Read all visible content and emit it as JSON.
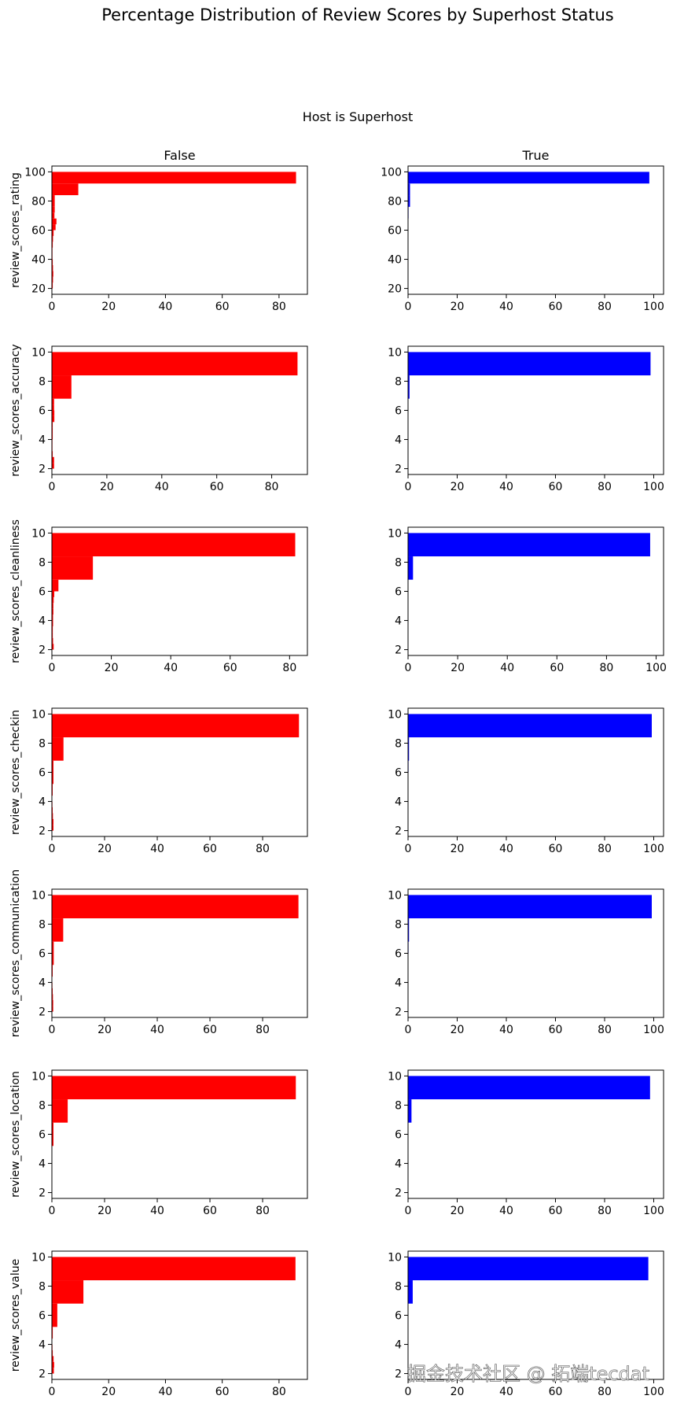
{
  "title": "Percentage Distribution of Review Scores by Superhost Status",
  "group_label": "Host is Superhost",
  "columns": [
    "False",
    "True"
  ],
  "colors": {
    "False": "#ff0000",
    "True": "#0000ff"
  },
  "watermark": "掘金技术社区 @ 拓端tecdat",
  "chart_data": [
    {
      "type": "bar",
      "orientation": "horizontal",
      "row": 0,
      "col": 0,
      "title": "False",
      "ylabel": "review_scores_rating",
      "color": "#ff0000",
      "ylim": [
        16,
        104
      ],
      "xlim": [
        0,
        90
      ],
      "yticks": [
        20,
        40,
        60,
        80,
        100
      ],
      "xticks": [
        0,
        20,
        40,
        60,
        80
      ],
      "bins": [
        [
          20,
          24,
          0.3
        ],
        [
          24,
          28,
          0.4
        ],
        [
          28,
          32,
          0.5
        ],
        [
          32,
          36,
          0.4
        ],
        [
          36,
          40,
          0.3
        ],
        [
          40,
          44,
          0.2
        ],
        [
          44,
          48,
          0.2
        ],
        [
          48,
          52,
          0.3
        ],
        [
          52,
          56,
          0.4
        ],
        [
          56,
          60,
          0.6
        ],
        [
          60,
          64,
          1.3
        ],
        [
          64,
          68,
          1.6
        ],
        [
          68,
          72,
          0.9
        ],
        [
          72,
          76,
          1.0
        ],
        [
          76,
          84,
          1.0
        ],
        [
          84,
          92,
          9.3
        ],
        [
          92,
          100,
          86.0
        ]
      ]
    },
    {
      "type": "bar",
      "orientation": "horizontal",
      "row": 0,
      "col": 1,
      "title": "True",
      "ylabel": "",
      "color": "#0000ff",
      "ylim": [
        16,
        104
      ],
      "xlim": [
        0,
        104
      ],
      "yticks": [
        20,
        40,
        60,
        80,
        100
      ],
      "xticks": [
        0,
        20,
        40,
        60,
        80,
        100
      ],
      "bins": [
        [
          68,
          76,
          0.2
        ],
        [
          76,
          84,
          0.8
        ],
        [
          84,
          92,
          0.8
        ],
        [
          92,
          100,
          98.2
        ]
      ]
    },
    {
      "type": "bar",
      "orientation": "horizontal",
      "row": 1,
      "col": 0,
      "title": "",
      "ylabel": "review_scores_accuracy",
      "color": "#ff0000",
      "ylim": [
        1.6,
        10.4
      ],
      "xlim": [
        0,
        93
      ],
      "yticks": [
        2,
        4,
        6,
        8,
        10
      ],
      "xticks": [
        0,
        20,
        40,
        60,
        80
      ],
      "bins": [
        [
          2,
          2.4,
          0.8
        ],
        [
          2.4,
          2.8,
          0.8
        ],
        [
          2.8,
          3.2,
          0.3
        ],
        [
          3.2,
          3.6,
          0.2
        ],
        [
          3.6,
          4.0,
          0.2
        ],
        [
          4.0,
          4.4,
          0.3
        ],
        [
          4.4,
          4.8,
          0.3
        ],
        [
          4.8,
          5.2,
          0.3
        ],
        [
          5.2,
          5.6,
          0.9
        ],
        [
          5.6,
          6.0,
          0.9
        ],
        [
          6.0,
          6.4,
          0.8
        ],
        [
          6.4,
          6.8,
          0.8
        ],
        [
          6.8,
          8.4,
          7.1
        ],
        [
          8.4,
          10.0,
          89.4
        ]
      ]
    },
    {
      "type": "bar",
      "orientation": "horizontal",
      "row": 1,
      "col": 1,
      "title": "",
      "ylabel": "",
      "color": "#0000ff",
      "ylim": [
        1.6,
        10.4
      ],
      "xlim": [
        0,
        104
      ],
      "yticks": [
        2,
        4,
        6,
        8,
        10
      ],
      "xticks": [
        0,
        20,
        40,
        60,
        80,
        100
      ],
      "bins": [
        [
          6.8,
          8.4,
          0.6
        ],
        [
          8.4,
          10.0,
          98.7
        ]
      ]
    },
    {
      "type": "bar",
      "orientation": "horizontal",
      "row": 2,
      "col": 0,
      "title": "",
      "ylabel": "review_scores_cleanliness",
      "color": "#ff0000",
      "ylim": [
        1.6,
        10.4
      ],
      "xlim": [
        0,
        86
      ],
      "yticks": [
        2,
        4,
        6,
        8,
        10
      ],
      "xticks": [
        0,
        20,
        40,
        60,
        80
      ],
      "bins": [
        [
          2,
          2.4,
          0.6
        ],
        [
          2.4,
          2.8,
          0.4
        ],
        [
          2.8,
          3.2,
          0.3
        ],
        [
          3.2,
          3.6,
          0.3
        ],
        [
          3.6,
          4.0,
          0.4
        ],
        [
          4.0,
          4.4,
          0.4
        ],
        [
          4.4,
          4.8,
          0.5
        ],
        [
          4.8,
          5.2,
          0.5
        ],
        [
          5.2,
          5.6,
          0.6
        ],
        [
          5.6,
          6.0,
          0.8
        ],
        [
          6.0,
          6.8,
          2.2
        ],
        [
          6.8,
          8.4,
          13.8
        ],
        [
          8.4,
          10.0,
          81.9
        ]
      ]
    },
    {
      "type": "bar",
      "orientation": "horizontal",
      "row": 2,
      "col": 1,
      "title": "",
      "ylabel": "",
      "color": "#0000ff",
      "ylim": [
        1.6,
        10.4
      ],
      "xlim": [
        0,
        103
      ],
      "yticks": [
        2,
        4,
        6,
        8,
        10
      ],
      "xticks": [
        0,
        20,
        40,
        60,
        80,
        100
      ],
      "bins": [
        [
          6.8,
          8.4,
          2.0
        ],
        [
          8.4,
          10.0,
          97.6
        ]
      ]
    },
    {
      "type": "bar",
      "orientation": "horizontal",
      "row": 3,
      "col": 0,
      "title": "",
      "ylabel": "review_scores_checkin",
      "color": "#ff0000",
      "ylim": [
        1.6,
        10.4
      ],
      "xlim": [
        0,
        97
      ],
      "yticks": [
        2,
        4,
        6,
        8,
        10
      ],
      "xticks": [
        0,
        20,
        40,
        60,
        80
      ],
      "bins": [
        [
          2,
          2.4,
          0.6
        ],
        [
          2.4,
          2.8,
          0.6
        ],
        [
          2.8,
          3.2,
          0.4
        ],
        [
          3.2,
          3.6,
          0.3
        ],
        [
          3.6,
          4.0,
          0.2
        ],
        [
          4.4,
          5.2,
          0.3
        ],
        [
          5.2,
          6.0,
          0.6
        ],
        [
          6.0,
          6.8,
          0.6
        ],
        [
          6.8,
          8.4,
          4.4
        ],
        [
          8.4,
          10.0,
          93.8
        ]
      ]
    },
    {
      "type": "bar",
      "orientation": "horizontal",
      "row": 3,
      "col": 1,
      "title": "",
      "ylabel": "",
      "color": "#0000ff",
      "ylim": [
        1.6,
        10.4
      ],
      "xlim": [
        0,
        104
      ],
      "yticks": [
        2,
        4,
        6,
        8,
        10
      ],
      "xticks": [
        0,
        20,
        40,
        60,
        80,
        100
      ],
      "bins": [
        [
          6.0,
          6.8,
          0.2
        ],
        [
          6.8,
          8.4,
          0.4
        ],
        [
          8.4,
          10.0,
          99.2
        ]
      ]
    },
    {
      "type": "bar",
      "orientation": "horizontal",
      "row": 4,
      "col": 0,
      "title": "",
      "ylabel": "review_scores_communication",
      "color": "#ff0000",
      "ylim": [
        1.6,
        10.4
      ],
      "xlim": [
        0,
        97
      ],
      "yticks": [
        2,
        4,
        6,
        8,
        10
      ],
      "xticks": [
        0,
        20,
        40,
        60,
        80
      ],
      "bins": [
        [
          2,
          2.4,
          0.5
        ],
        [
          2.4,
          2.8,
          0.5
        ],
        [
          2.8,
          3.2,
          0.4
        ],
        [
          3.2,
          3.6,
          0.3
        ],
        [
          3.6,
          4.0,
          0.2
        ],
        [
          4.4,
          5.2,
          0.3
        ],
        [
          5.2,
          6.0,
          0.7
        ],
        [
          6.0,
          6.8,
          0.7
        ],
        [
          6.8,
          8.4,
          4.3
        ],
        [
          8.4,
          10.0,
          93.6
        ]
      ]
    },
    {
      "type": "bar",
      "orientation": "horizontal",
      "row": 4,
      "col": 1,
      "title": "",
      "ylabel": "",
      "color": "#0000ff",
      "ylim": [
        1.6,
        10.4
      ],
      "xlim": [
        0,
        104
      ],
      "yticks": [
        2,
        4,
        6,
        8,
        10
      ],
      "xticks": [
        0,
        20,
        40,
        60,
        80,
        100
      ],
      "bins": [
        [
          6.0,
          6.8,
          0.2
        ],
        [
          6.8,
          8.4,
          0.4
        ],
        [
          8.4,
          10.0,
          99.2
        ]
      ]
    },
    {
      "type": "bar",
      "orientation": "horizontal",
      "row": 5,
      "col": 0,
      "title": "",
      "ylabel": "review_scores_location",
      "color": "#ff0000",
      "ylim": [
        1.6,
        10.4
      ],
      "xlim": [
        0,
        97
      ],
      "yticks": [
        2,
        4,
        6,
        8,
        10
      ],
      "xticks": [
        0,
        20,
        40,
        60,
        80
      ],
      "bins": [
        [
          5.2,
          6.0,
          0.6
        ],
        [
          6.0,
          6.8,
          0.6
        ],
        [
          6.8,
          8.4,
          6.0
        ],
        [
          8.4,
          10.0,
          92.6
        ]
      ]
    },
    {
      "type": "bar",
      "orientation": "horizontal",
      "row": 5,
      "col": 1,
      "title": "",
      "ylabel": "",
      "color": "#0000ff",
      "ylim": [
        1.6,
        10.4
      ],
      "xlim": [
        0,
        104
      ],
      "yticks": [
        2,
        4,
        6,
        8,
        10
      ],
      "xticks": [
        0,
        20,
        40,
        60,
        80,
        100
      ],
      "bins": [
        [
          6.8,
          8.4,
          1.4
        ],
        [
          8.4,
          10.0,
          98.5
        ]
      ]
    },
    {
      "type": "bar",
      "orientation": "horizontal",
      "row": 6,
      "col": 0,
      "title": "",
      "ylabel": "review_scores_value",
      "color": "#ff0000",
      "ylim": [
        1.6,
        10.4
      ],
      "xlim": [
        0,
        90
      ],
      "yticks": [
        2,
        4,
        6,
        8,
        10
      ],
      "xticks": [
        0,
        20,
        40,
        60,
        80
      ],
      "bins": [
        [
          2,
          2.4,
          0.7
        ],
        [
          2.4,
          2.8,
          0.8
        ],
        [
          2.8,
          3.2,
          0.6
        ],
        [
          3.2,
          3.6,
          0.3
        ],
        [
          3.6,
          4.0,
          0.2
        ],
        [
          4.4,
          5.2,
          0.3
        ],
        [
          5.2,
          6.0,
          1.9
        ],
        [
          6.0,
          6.8,
          1.9
        ],
        [
          6.8,
          8.4,
          11.1
        ],
        [
          8.4,
          10.0,
          85.8
        ]
      ]
    },
    {
      "type": "bar",
      "orientation": "horizontal",
      "row": 6,
      "col": 1,
      "title": "",
      "ylabel": "",
      "color": "#0000ff",
      "ylim": [
        1.6,
        10.4
      ],
      "xlim": [
        0,
        104
      ],
      "yticks": [
        2,
        4,
        6,
        8,
        10
      ],
      "xticks": [
        0,
        20,
        40,
        60,
        80,
        100
      ],
      "bins": [
        [
          6.8,
          8.4,
          1.9
        ],
        [
          8.4,
          10.0,
          97.8
        ]
      ]
    }
  ]
}
